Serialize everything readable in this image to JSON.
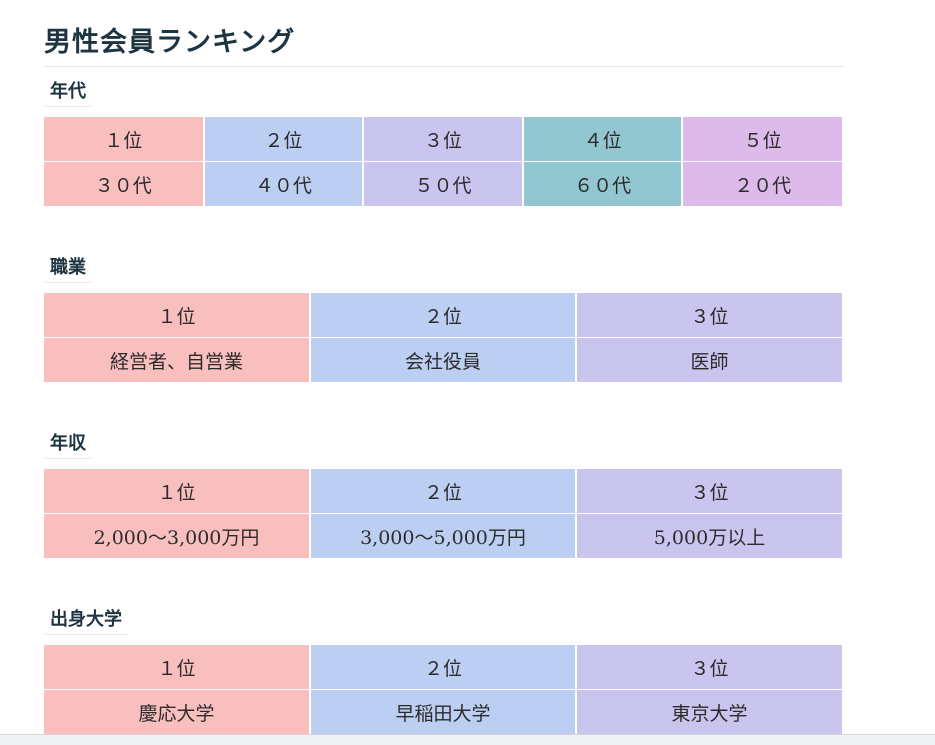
{
  "page_title": "男性会員ランキング",
  "sections": [
    {
      "label": "年代",
      "ranks": [
        "１位",
        "２位",
        "３位",
        "４位",
        "５位"
      ],
      "values": [
        "３０代",
        "４０代",
        "５０代",
        "６０代",
        "２０代"
      ]
    },
    {
      "label": "職業",
      "ranks": [
        "１位",
        "２位",
        "３位"
      ],
      "values": [
        "経営者、自営業",
        "会社役員",
        "医師"
      ]
    },
    {
      "label": "年収",
      "ranks": [
        "１位",
        "２位",
        "３位"
      ],
      "values": [
        "2,000〜3,000万円",
        "3,000〜5,000万円",
        "5,000万以上"
      ]
    },
    {
      "label": "出身大学",
      "ranks": [
        "１位",
        "２位",
        "３位"
      ],
      "values": [
        "慶応大学",
        "早稲田大学",
        "東京大学"
      ]
    }
  ],
  "colors": {
    "rank1": "#f9bfbf",
    "rank2": "#bccff2",
    "rank3": "#c9c5ef",
    "rank4": "#92c7d1",
    "rank5": "#dcbaea",
    "heading": "#1e3440"
  }
}
